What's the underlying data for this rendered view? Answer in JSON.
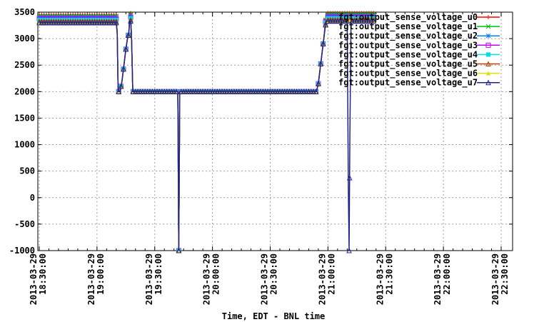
{
  "chart_data": {
    "type": "line",
    "title": "",
    "xlabel": "Time, EDT - BNL time",
    "ylabel": "",
    "ylim": [
      -1000,
      3500
    ],
    "yticks": [
      -1000,
      -500,
      0,
      500,
      1000,
      1500,
      2000,
      2500,
      3000,
      3500
    ],
    "xlim": [
      0,
      240
    ],
    "xticks": [
      {
        "x": 0,
        "date": "2013-03-29",
        "time": "18:30:00"
      },
      {
        "x": 30,
        "date": "2013-03-29",
        "time": "19:00:00"
      },
      {
        "x": 60,
        "date": "2013-03-29",
        "time": "19:30:00"
      },
      {
        "x": 90,
        "date": "2013-03-29",
        "time": "20:00:00"
      },
      {
        "x": 120,
        "date": "2013-03-29",
        "time": "20:30:00"
      },
      {
        "x": 150,
        "date": "2013-03-29",
        "time": "21:00:00"
      },
      {
        "x": 180,
        "date": "2013-03-29",
        "time": "21:30:00"
      },
      {
        "x": 210,
        "date": "2013-03-29",
        "time": "22:00:00"
      },
      {
        "x": 240,
        "date": "2013-03-29",
        "time": "22:30:00"
      }
    ],
    "grid": true,
    "legend_position": "top-right",
    "series": [
      {
        "name": "fgt:output_sense_voltage_u0",
        "color": "#ff0000",
        "marker": "plus",
        "offset": 150
      },
      {
        "name": "fgt:output_sense_voltage_u1",
        "color": "#00c000",
        "marker": "cross",
        "offset": 125
      },
      {
        "name": "fgt:output_sense_voltage_u2",
        "color": "#0080ff",
        "marker": "star",
        "offset": 100
      },
      {
        "name": "fgt:output_sense_voltage_u3",
        "color": "#c000ff",
        "marker": "square",
        "offset": 75
      },
      {
        "name": "fgt:output_sense_voltage_u4",
        "color": "#00e0e0",
        "marker": "fsquare",
        "offset": 50
      },
      {
        "name": "fgt:output_sense_voltage_u5",
        "color": "#c04000",
        "marker": "triangle",
        "offset": 25
      },
      {
        "name": "fgt:output_sense_voltage_u6",
        "color": "#e0e000",
        "marker": "ftriangle",
        "offset": 0
      },
      {
        "name": "fgt:output_sense_voltage_u7",
        "color": "#202090",
        "marker": "triangle",
        "offset": 0
      }
    ],
    "base_profile": [
      [
        0,
        3300
      ],
      [
        40,
        3300
      ],
      [
        40.5,
        3100
      ],
      [
        41,
        2000
      ],
      [
        42,
        2000
      ],
      [
        43,
        2200
      ],
      [
        44,
        2500
      ],
      [
        45,
        2800
      ],
      [
        45.8,
        3000
      ],
      [
        46.5,
        3100
      ],
      [
        47,
        3330
      ],
      [
        47.5,
        3330
      ],
      [
        48,
        2950
      ],
      [
        48.6,
        2000
      ],
      [
        72,
        2000
      ],
      [
        72.5,
        -1000
      ],
      [
        73,
        2000
      ],
      [
        144,
        2000
      ],
      [
        145,
        2150
      ],
      [
        146,
        2450
      ],
      [
        147,
        2750
      ],
      [
        148,
        3050
      ],
      [
        149,
        3330
      ],
      [
        174,
        3330
      ]
    ],
    "u7_extra_drop": [
      [
        160,
        3330
      ],
      [
        160.6,
        100
      ],
      [
        161,
        -1000
      ],
      [
        161.4,
        1200
      ],
      [
        162,
        3330
      ]
    ]
  }
}
